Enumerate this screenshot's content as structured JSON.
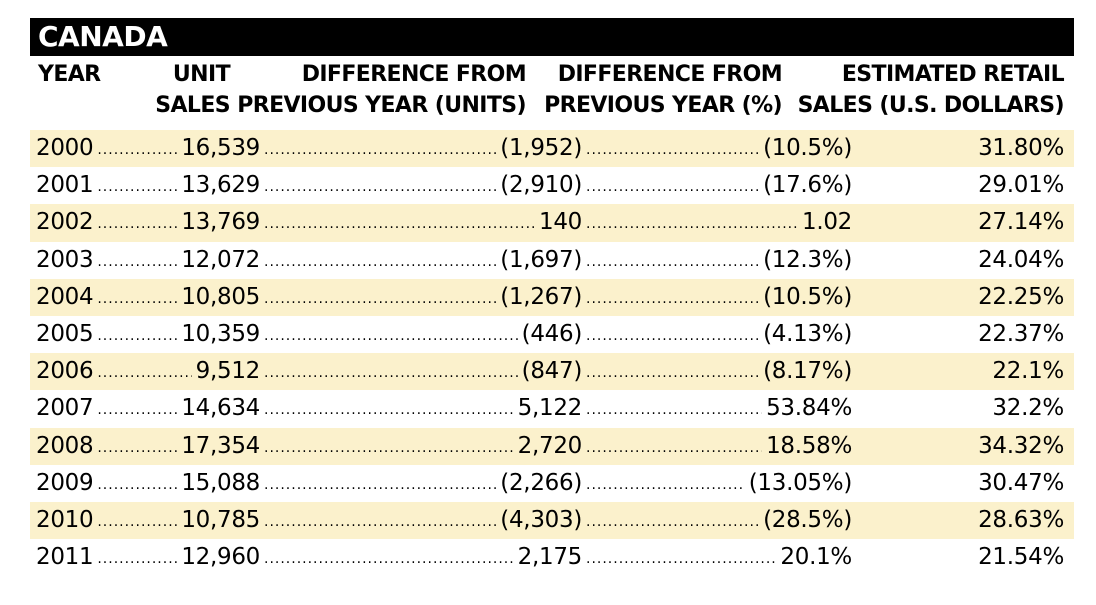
{
  "title": "CANADA",
  "headers": {
    "year": "YEAR",
    "unit_sales_line1": "UNIT",
    "unit_sales_line2": "SALES",
    "diff_units_line1": "DIFFERENCE FROM",
    "diff_units_line2": "PREVIOUS YEAR (UNITS)",
    "diff_pct_line1": "DIFFERENCE FROM",
    "diff_pct_line2": "PREVIOUS YEAR (%)",
    "retail_line1": "ESTIMATED RETAIL",
    "retail_line2": "SALES (U.S. DOLLARS)"
  },
  "rows": [
    {
      "year": "2000",
      "units": "16,539",
      "diff_units": "(1,952)",
      "diff_pct": "(10.5%)",
      "retail": "31.80%"
    },
    {
      "year": "2001",
      "units": "13,629",
      "diff_units": "(2,910)",
      "diff_pct": "(17.6%)",
      "retail": "29.01%"
    },
    {
      "year": "2002",
      "units": "13,769",
      "diff_units": "140",
      "diff_pct": "1.02",
      "retail": "27.14%"
    },
    {
      "year": "2003",
      "units": "12,072",
      "diff_units": "(1,697)",
      "diff_pct": "(12.3%)",
      "retail": "24.04%"
    },
    {
      "year": "2004",
      "units": "10,805",
      "diff_units": "(1,267)",
      "diff_pct": "(10.5%)",
      "retail": "22.25%"
    },
    {
      "year": "2005",
      "units": "10,359",
      "diff_units": "(446)",
      "diff_pct": "(4.13%)",
      "retail": "22.37%"
    },
    {
      "year": "2006",
      "units": "9,512",
      "diff_units": "(847)",
      "diff_pct": "(8.17%)",
      "retail": "22.1%"
    },
    {
      "year": "2007",
      "units": "14,634",
      "diff_units": "5,122",
      "diff_pct": "53.84%",
      "retail": "32.2%"
    },
    {
      "year": "2008",
      "units": "17,354",
      "diff_units": "2,720",
      "diff_pct": "18.58%",
      "retail": "34.32%"
    },
    {
      "year": "2009",
      "units": "15,088",
      "diff_units": "(2,266)",
      "diff_pct": "(13.05%)",
      "retail": "30.47%"
    },
    {
      "year": "2010",
      "units": "10,785",
      "diff_units": "(4,303)",
      "diff_pct": "(28.5%)",
      "retail": "28.63%"
    },
    {
      "year": "2011",
      "units": "12,960",
      "diff_units": "2,175",
      "diff_pct": "20.1%",
      "retail": "21.54%"
    }
  ]
}
